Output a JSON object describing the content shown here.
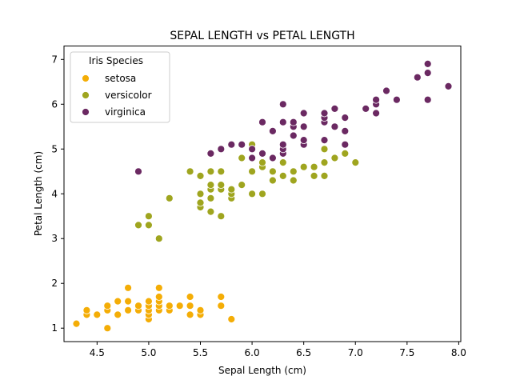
{
  "chart_data": {
    "type": "scatter",
    "title": "SEPAL LENGTH vs PETAL LENGTH",
    "xlabel": "Sepal Length (cm)",
    "ylabel": "Petal Length (cm)",
    "xlim": [
      4.18,
      8.02
    ],
    "ylim": [
      0.7,
      7.3
    ],
    "xticks": [
      "4.5",
      "5.0",
      "5.5",
      "6.0",
      "6.5",
      "7.0",
      "7.5",
      "8.0"
    ],
    "yticks": [
      "1",
      "2",
      "3",
      "4",
      "5",
      "6",
      "7"
    ],
    "grid": false,
    "legend": {
      "title": "Iris Species",
      "position": "top-left"
    },
    "series": [
      {
        "name": "setosa",
        "color": "#f4ad06",
        "points": [
          [
            4.3,
            1.1
          ],
          [
            4.4,
            1.3
          ],
          [
            4.4,
            1.4
          ],
          [
            4.5,
            1.3
          ],
          [
            4.6,
            1.0
          ],
          [
            4.6,
            1.4
          ],
          [
            4.6,
            1.5
          ],
          [
            4.7,
            1.3
          ],
          [
            4.7,
            1.6
          ],
          [
            4.8,
            1.4
          ],
          [
            4.8,
            1.6
          ],
          [
            4.8,
            1.9
          ],
          [
            4.9,
            1.4
          ],
          [
            4.9,
            1.5
          ],
          [
            5.0,
            1.2
          ],
          [
            5.0,
            1.3
          ],
          [
            5.0,
            1.4
          ],
          [
            5.0,
            1.5
          ],
          [
            5.0,
            1.6
          ],
          [
            5.1,
            1.4
          ],
          [
            5.1,
            1.5
          ],
          [
            5.1,
            1.6
          ],
          [
            5.1,
            1.7
          ],
          [
            5.1,
            1.9
          ],
          [
            5.2,
            1.4
          ],
          [
            5.2,
            1.5
          ],
          [
            5.3,
            1.5
          ],
          [
            5.4,
            1.3
          ],
          [
            5.4,
            1.5
          ],
          [
            5.4,
            1.7
          ],
          [
            5.5,
            1.3
          ],
          [
            5.5,
            1.4
          ],
          [
            5.7,
            1.5
          ],
          [
            5.7,
            1.7
          ],
          [
            5.8,
            1.2
          ]
        ]
      },
      {
        "name": "versicolor",
        "color": "#9fa51f",
        "points": [
          [
            4.9,
            3.3
          ],
          [
            5.0,
            3.3
          ],
          [
            5.0,
            3.5
          ],
          [
            5.1,
            3.0
          ],
          [
            5.2,
            3.9
          ],
          [
            5.4,
            4.5
          ],
          [
            5.5,
            3.7
          ],
          [
            5.5,
            3.8
          ],
          [
            5.5,
            4.0
          ],
          [
            5.5,
            4.4
          ],
          [
            5.6,
            3.6
          ],
          [
            5.6,
            3.9
          ],
          [
            5.6,
            4.1
          ],
          [
            5.6,
            4.2
          ],
          [
            5.6,
            4.5
          ],
          [
            5.7,
            3.5
          ],
          [
            5.7,
            4.1
          ],
          [
            5.7,
            4.2
          ],
          [
            5.7,
            4.5
          ],
          [
            5.8,
            3.9
          ],
          [
            5.8,
            4.0
          ],
          [
            5.8,
            4.1
          ],
          [
            5.9,
            4.2
          ],
          [
            5.9,
            4.8
          ],
          [
            6.0,
            4.0
          ],
          [
            6.0,
            4.5
          ],
          [
            6.0,
            5.1
          ],
          [
            6.1,
            4.0
          ],
          [
            6.1,
            4.6
          ],
          [
            6.1,
            4.7
          ],
          [
            6.2,
            4.3
          ],
          [
            6.2,
            4.5
          ],
          [
            6.3,
            4.4
          ],
          [
            6.3,
            4.7
          ],
          [
            6.3,
            4.9
          ],
          [
            6.4,
            4.3
          ],
          [
            6.4,
            4.5
          ],
          [
            6.5,
            4.6
          ],
          [
            6.6,
            4.4
          ],
          [
            6.6,
            4.6
          ],
          [
            6.7,
            4.4
          ],
          [
            6.7,
            4.7
          ],
          [
            6.7,
            5.0
          ],
          [
            6.8,
            4.8
          ],
          [
            6.9,
            4.9
          ],
          [
            7.0,
            4.7
          ]
        ]
      },
      {
        "name": "virginica",
        "color": "#6b2962",
        "points": [
          [
            4.9,
            4.5
          ],
          [
            5.6,
            4.9
          ],
          [
            5.7,
            5.0
          ],
          [
            5.8,
            5.1
          ],
          [
            5.9,
            5.1
          ],
          [
            6.0,
            4.8
          ],
          [
            6.0,
            5.0
          ],
          [
            6.1,
            4.9
          ],
          [
            6.1,
            5.6
          ],
          [
            6.2,
            4.8
          ],
          [
            6.2,
            5.4
          ],
          [
            6.3,
            4.9
          ],
          [
            6.3,
            5.0
          ],
          [
            6.3,
            5.1
          ],
          [
            6.3,
            5.6
          ],
          [
            6.3,
            6.0
          ],
          [
            6.4,
            5.3
          ],
          [
            6.4,
            5.5
          ],
          [
            6.4,
            5.6
          ],
          [
            6.5,
            5.1
          ],
          [
            6.5,
            5.2
          ],
          [
            6.5,
            5.5
          ],
          [
            6.5,
            5.8
          ],
          [
            6.7,
            5.2
          ],
          [
            6.7,
            5.6
          ],
          [
            6.7,
            5.7
          ],
          [
            6.7,
            5.8
          ],
          [
            6.8,
            5.5
          ],
          [
            6.8,
            5.9
          ],
          [
            6.9,
            5.1
          ],
          [
            6.9,
            5.4
          ],
          [
            6.9,
            5.7
          ],
          [
            7.1,
            5.9
          ],
          [
            7.2,
            5.8
          ],
          [
            7.2,
            6.0
          ],
          [
            7.2,
            6.1
          ],
          [
            7.3,
            6.3
          ],
          [
            7.4,
            6.1
          ],
          [
            7.6,
            6.6
          ],
          [
            7.7,
            6.1
          ],
          [
            7.7,
            6.7
          ],
          [
            7.7,
            6.9
          ],
          [
            7.9,
            6.4
          ]
        ]
      }
    ]
  }
}
